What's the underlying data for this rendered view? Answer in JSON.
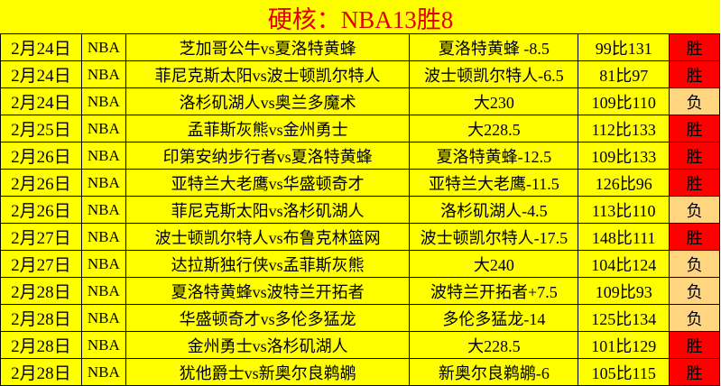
{
  "title": "硬核：NBA13胜8",
  "colors": {
    "background": "#FFFF00",
    "title": "#E00000",
    "win": "#FF0000",
    "lose": "#FFD580"
  },
  "rows": [
    {
      "date": "2月24日",
      "league": "NBA",
      "match": "芝加哥公牛vs夏洛特黄蜂",
      "pick": "夏洛特黄蜂 -8.5",
      "score": "99比131",
      "result": "胜"
    },
    {
      "date": "2月24日",
      "league": "NBA",
      "match": "菲尼克斯太阳vs波士顿凯尔特人",
      "pick": "波士顿凯尔特人-6.5",
      "score": "81比97",
      "result": "胜"
    },
    {
      "date": "2月24日",
      "league": "NBA",
      "match": "洛杉矶湖人vs奥兰多魔术",
      "pick": "大230",
      "score": "109比110",
      "result": "负"
    },
    {
      "date": "2月25日",
      "league": "NBA",
      "match": "孟菲斯灰熊vs金州勇士",
      "pick": "大228.5",
      "score": "112比133",
      "result": "胜"
    },
    {
      "date": "2月26日",
      "league": "NBA",
      "match": "印第安纳步行者vs夏洛特黄蜂",
      "pick": "夏洛特黄蜂-12.5",
      "score": "109比133",
      "result": "胜"
    },
    {
      "date": "2月26日",
      "league": "NBA",
      "match": "亚特兰大老鹰vs华盛顿奇才",
      "pick": "亚特兰大老鹰-11.5",
      "score": "126比96",
      "result": "胜"
    },
    {
      "date": "2月26日",
      "league": "NBA",
      "match": "菲尼克斯太阳vs洛杉矶湖人",
      "pick": "洛杉矶湖人-4.5",
      "score": "113比110",
      "result": "负"
    },
    {
      "date": "2月27日",
      "league": "NBA",
      "match": "波士顿凯尔特人vs布鲁克林篮网",
      "pick": "波士顿凯尔特人-17.5",
      "score": "148比111",
      "result": "胜"
    },
    {
      "date": "2月27日",
      "league": "NBA",
      "match": "达拉斯独行侠vs孟菲斯灰熊",
      "pick": "大240",
      "score": "104比124",
      "result": "负"
    },
    {
      "date": "2月28日",
      "league": "NBA",
      "match": "夏洛特黄蜂vs波特兰开拓者",
      "pick": "波特兰开拓者+7.5",
      "score": "109比93",
      "result": "负"
    },
    {
      "date": "2月28日",
      "league": "NBA",
      "match": "华盛顿奇才vs多伦多猛龙",
      "pick": "多伦多猛龙-14",
      "score": "125比134",
      "result": "负"
    },
    {
      "date": "2月28日",
      "league": "NBA",
      "match": "金州勇士vs洛杉矶湖人",
      "pick": "大228.5",
      "score": "101比129",
      "result": "胜"
    },
    {
      "date": "2月28日",
      "league": "NBA",
      "match": "犹他爵士vs新奥尔良鹈鹕",
      "pick": "新奥尔良鹈鹕-6",
      "score": "105比115",
      "result": "胜"
    }
  ]
}
